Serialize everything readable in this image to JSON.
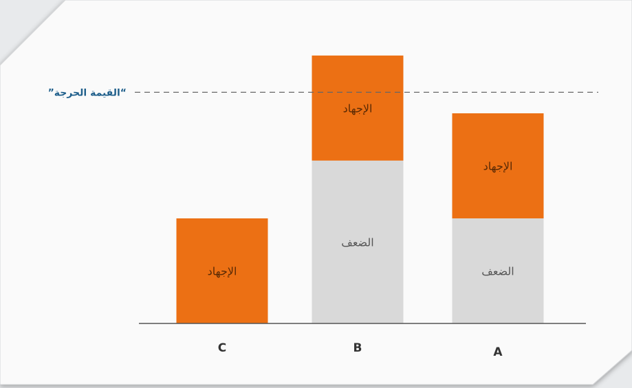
{
  "chart_data": {
    "type": "bar",
    "stacked": true,
    "direction": "rtl",
    "categories": [
      "A",
      "B",
      "C"
    ],
    "series": [
      {
        "name": "الضعف",
        "values": [
          1.0,
          1.55,
          0.0
        ],
        "segment_labels": [
          "الضعف",
          "الضعف",
          ""
        ]
      },
      {
        "name": "الإجهاد",
        "values": [
          1.0,
          1.0,
          1.0
        ],
        "segment_labels": [
          "الإجهاد",
          "الإجهاد",
          "الإجهاد"
        ]
      }
    ],
    "threshold": {
      "label": "”القيمة الحرجة“",
      "value": 2.2
    },
    "ylim": [
      0,
      2.6
    ],
    "grid": false,
    "colors": {
      "weakness": "#d9d9d9",
      "stress": "#ec7014",
      "threshold_label": "#1f5f8b",
      "axis": "#555555",
      "dash": "#666666"
    }
  }
}
